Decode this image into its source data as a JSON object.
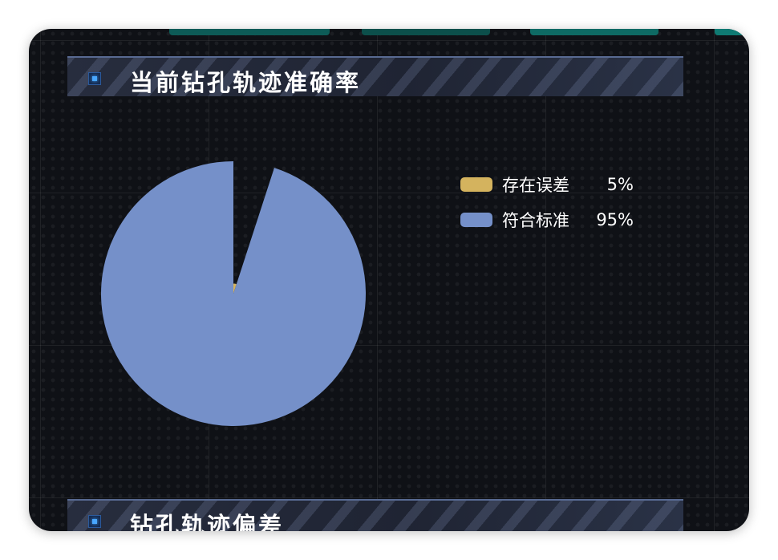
{
  "panel1": {
    "title": "当前钻孔轨迹准确率"
  },
  "panel2": {
    "title": "钻孔轨迹偏差"
  },
  "colors": {
    "background": "#0f1116",
    "error": "#d4b35e",
    "standard": "#7590c9",
    "accent": "#0e6a64"
  },
  "icons": {
    "header_badge": "square-bullet-icon"
  },
  "chart_data": {
    "type": "pie",
    "title": "当前钻孔轨迹准确率",
    "categories": [
      "存在误差",
      "符合标准"
    ],
    "values": [
      5,
      95
    ],
    "value_labels": [
      "5%",
      "95%"
    ],
    "colors": [
      "#d4b35e",
      "#7590c9"
    ],
    "legend_position": "right"
  }
}
